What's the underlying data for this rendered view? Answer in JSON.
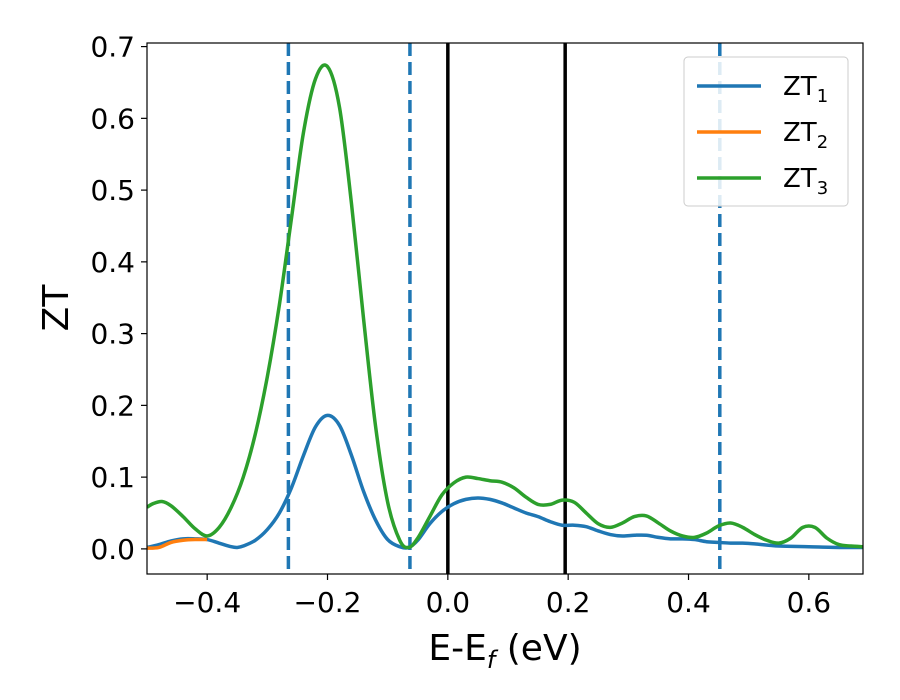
{
  "chart_data": {
    "type": "line",
    "title": "",
    "xlabel": "E-E",
    "xlabel_sub": "f",
    "xlabel_unit": " (eV)",
    "ylabel": "ZT",
    "xlim": [
      -0.5,
      0.69
    ],
    "ylim": [
      -0.035,
      0.705
    ],
    "xticks": [
      -0.4,
      -0.2,
      0.0,
      0.2,
      0.4,
      0.6
    ],
    "xtick_labels": [
      "−0.4",
      "−0.2",
      "0.0",
      "0.2",
      "0.4",
      "0.6"
    ],
    "yticks": [
      0.0,
      0.1,
      0.2,
      0.3,
      0.4,
      0.5,
      0.6,
      0.7
    ],
    "ytick_labels": [
      "0.0",
      "0.1",
      "0.2",
      "0.3",
      "0.4",
      "0.5",
      "0.6",
      "0.7"
    ],
    "grid": false,
    "legend_position": "top-right",
    "vlines_solid": [
      0.0,
      0.195
    ],
    "vlines_dashed": [
      -0.265,
      -0.063,
      0.452
    ],
    "series": [
      {
        "name": "ZT",
        "sub": "1",
        "color": "#1f77b4",
        "x": [
          -0.5,
          -0.48,
          -0.46,
          -0.44,
          -0.42,
          -0.4,
          -0.38,
          -0.36,
          -0.35,
          -0.34,
          -0.32,
          -0.3,
          -0.28,
          -0.26,
          -0.24,
          -0.22,
          -0.2,
          -0.18,
          -0.16,
          -0.14,
          -0.12,
          -0.1,
          -0.08,
          -0.065,
          -0.05,
          -0.03,
          -0.01,
          0.01,
          0.03,
          0.05,
          0.07,
          0.09,
          0.11,
          0.13,
          0.15,
          0.17,
          0.19,
          0.21,
          0.23,
          0.25,
          0.27,
          0.29,
          0.31,
          0.33,
          0.35,
          0.37,
          0.39,
          0.41,
          0.43,
          0.45,
          0.47,
          0.49,
          0.51,
          0.55,
          0.6,
          0.65,
          0.69
        ],
        "values": [
          0.002,
          0.006,
          0.011,
          0.014,
          0.014,
          0.013,
          0.008,
          0.003,
          0.002,
          0.004,
          0.012,
          0.027,
          0.05,
          0.085,
          0.13,
          0.17,
          0.186,
          0.172,
          0.13,
          0.08,
          0.04,
          0.013,
          0.003,
          0.002,
          0.012,
          0.035,
          0.052,
          0.063,
          0.069,
          0.071,
          0.069,
          0.064,
          0.057,
          0.05,
          0.045,
          0.038,
          0.033,
          0.033,
          0.031,
          0.025,
          0.02,
          0.018,
          0.019,
          0.019,
          0.016,
          0.014,
          0.014,
          0.013,
          0.01,
          0.009,
          0.008,
          0.008,
          0.007,
          0.004,
          0.003,
          0.002,
          0.002
        ]
      },
      {
        "name": "ZT",
        "sub": "2",
        "color": "#ff7f0e",
        "x": [
          -0.5,
          -0.48,
          -0.46,
          -0.44,
          -0.42,
          -0.4
        ],
        "values": [
          0.001,
          0.002,
          0.009,
          0.012,
          0.013,
          0.013
        ]
      },
      {
        "name": "ZT",
        "sub": "3",
        "color": "#2ca02c",
        "x": [
          -0.5,
          -0.49,
          -0.475,
          -0.46,
          -0.44,
          -0.42,
          -0.4,
          -0.38,
          -0.36,
          -0.34,
          -0.32,
          -0.3,
          -0.28,
          -0.26,
          -0.24,
          -0.22,
          -0.2,
          -0.18,
          -0.16,
          -0.14,
          -0.12,
          -0.1,
          -0.08,
          -0.065,
          -0.05,
          -0.03,
          -0.01,
          0.01,
          0.03,
          0.05,
          0.07,
          0.09,
          0.11,
          0.13,
          0.15,
          0.17,
          0.19,
          0.21,
          0.23,
          0.25,
          0.27,
          0.29,
          0.31,
          0.33,
          0.35,
          0.37,
          0.39,
          0.41,
          0.43,
          0.45,
          0.47,
          0.49,
          0.51,
          0.53,
          0.55,
          0.57,
          0.59,
          0.61,
          0.63,
          0.65,
          0.67,
          0.69
        ],
        "values": [
          0.058,
          0.063,
          0.066,
          0.06,
          0.045,
          0.028,
          0.018,
          0.03,
          0.058,
          0.1,
          0.16,
          0.24,
          0.34,
          0.46,
          0.58,
          0.655,
          0.672,
          0.615,
          0.48,
          0.32,
          0.17,
          0.065,
          0.012,
          0.002,
          0.015,
          0.045,
          0.075,
          0.092,
          0.1,
          0.098,
          0.095,
          0.093,
          0.085,
          0.072,
          0.062,
          0.062,
          0.068,
          0.065,
          0.05,
          0.035,
          0.03,
          0.036,
          0.045,
          0.046,
          0.036,
          0.025,
          0.018,
          0.016,
          0.022,
          0.032,
          0.036,
          0.03,
          0.02,
          0.012,
          0.008,
          0.015,
          0.03,
          0.03,
          0.015,
          0.006,
          0.004,
          0.003
        ]
      }
    ]
  }
}
